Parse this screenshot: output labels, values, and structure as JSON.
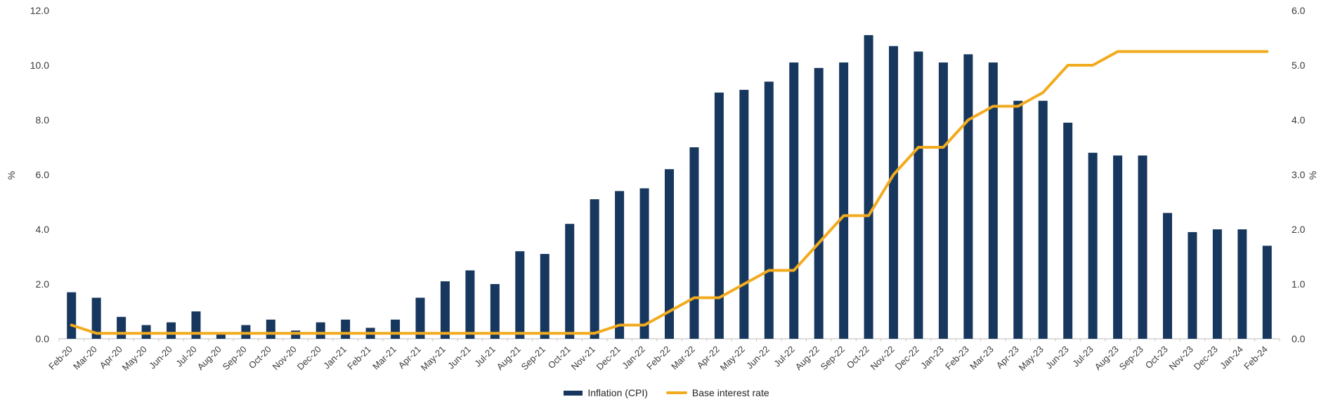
{
  "chart_data": {
    "type": "bar+line",
    "title": "",
    "categories": [
      "Feb-20",
      "Mar-20",
      "Apr-20",
      "May-20",
      "Jun-20",
      "Jul-20",
      "Aug-20",
      "Sep-20",
      "Oct-20",
      "Nov-20",
      "Dec-20",
      "Jan-21",
      "Feb-21",
      "Mar-21",
      "Apr-21",
      "May-21",
      "Jun-21",
      "Jul-21",
      "Aug-21",
      "Sep-21",
      "Oct-21",
      "Nov-21",
      "Dec-21",
      "Jan-22",
      "Feb-22",
      "Mar-22",
      "Apr-22",
      "May-22",
      "Jun-22",
      "Jul-22",
      "Aug-22",
      "Sep-22",
      "Oct-22",
      "Nov-22",
      "Dec-22",
      "Jan-23",
      "Feb-23",
      "Mar-23",
      "Apr-23",
      "May-23",
      "Jun-23",
      "Jul-23",
      "Aug-23",
      "Sep-23",
      "Oct-23",
      "Nov-23",
      "Dec-23",
      "Jan-24",
      "Feb-24"
    ],
    "series": [
      {
        "name": "Inflation (CPI)",
        "type": "bar",
        "axis": "left",
        "color": "#17375E",
        "values": [
          1.7,
          1.5,
          0.8,
          0.5,
          0.6,
          1.0,
          0.2,
          0.5,
          0.7,
          0.3,
          0.6,
          0.7,
          0.4,
          0.7,
          1.5,
          2.1,
          2.5,
          2.0,
          3.2,
          3.1,
          4.2,
          5.1,
          5.4,
          5.5,
          6.2,
          7.0,
          9.0,
          9.1,
          9.4,
          10.1,
          9.9,
          10.1,
          11.1,
          10.7,
          10.5,
          10.1,
          10.4,
          10.1,
          8.7,
          8.7,
          7.9,
          6.8,
          6.7,
          6.7,
          4.6,
          3.9,
          4.0,
          4.0,
          3.4
        ]
      },
      {
        "name": "Base interest rate",
        "type": "line",
        "axis": "right",
        "color": "#F2AB1E",
        "values": [
          0.25,
          0.1,
          0.1,
          0.1,
          0.1,
          0.1,
          0.1,
          0.1,
          0.1,
          0.1,
          0.1,
          0.1,
          0.1,
          0.1,
          0.1,
          0.1,
          0.1,
          0.1,
          0.1,
          0.1,
          0.1,
          0.1,
          0.25,
          0.25,
          0.5,
          0.75,
          0.75,
          1.0,
          1.25,
          1.25,
          1.75,
          2.25,
          2.25,
          3.0,
          3.5,
          3.5,
          4.0,
          4.25,
          4.25,
          4.5,
          5.0,
          5.0,
          5.25,
          5.25,
          5.25,
          5.25,
          5.25,
          5.25,
          5.25
        ]
      }
    ],
    "left_axis": {
      "title": "%",
      "min": 0,
      "max": 12,
      "tick_labels": [
        "0.0",
        "2.0",
        "4.0",
        "6.0",
        "8.0",
        "10.0",
        "12.0"
      ]
    },
    "right_axis": {
      "title": "%",
      "min": 0,
      "max": 6,
      "tick_labels": [
        "0.0",
        "1.0",
        "2.0",
        "3.0",
        "4.0",
        "5.0",
        "6.0"
      ]
    },
    "grid": false,
    "legend_position": "bottom-center",
    "colors": {
      "axis_line": "#c8c8c8",
      "tick_mark": "#c8c8c8",
      "label_text": "#3b3b3b"
    }
  },
  "axes": {
    "left_title": "%",
    "right_title": "%"
  },
  "legend": {
    "bar_label": "Inflation (CPI)",
    "line_label": "Base interest rate"
  }
}
